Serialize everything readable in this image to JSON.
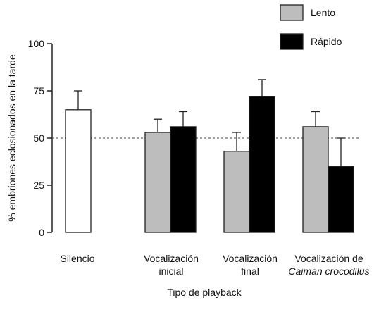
{
  "chart_data": {
    "type": "bar",
    "xlabel": "Tipo de playback",
    "ylabel": "% embriones eclosionados en la tarde",
    "ylim": [
      0,
      100
    ],
    "yticks": [
      "0",
      "25",
      "50",
      "75",
      "100"
    ],
    "reference_line": 50,
    "legend": {
      "placement": "top-right",
      "entries": [
        {
          "label": "Lento",
          "color": "#bdbdbd"
        },
        {
          "label": "Rápido",
          "color": "#000000"
        }
      ]
    },
    "groups": [
      {
        "label_lines": [
          "Silencio"
        ],
        "label_italic_suffix": "",
        "bars": [
          {
            "series": "control",
            "value": 65,
            "error": 10,
            "color": "#ffffff"
          }
        ]
      },
      {
        "label_lines": [
          "Vocalización",
          "inicial"
        ],
        "label_italic_suffix": "",
        "bars": [
          {
            "series": "Lento",
            "value": 53,
            "error": 7,
            "color": "#bdbdbd"
          },
          {
            "series": "Rápido",
            "value": 56,
            "error": 8,
            "color": "#000000"
          }
        ]
      },
      {
        "label_lines": [
          "Vocalización",
          "final"
        ],
        "label_italic_suffix": "",
        "bars": [
          {
            "series": "Lento",
            "value": 43,
            "error": 10,
            "color": "#bdbdbd"
          },
          {
            "series": "Rápido",
            "value": 72,
            "error": 9,
            "color": "#000000"
          }
        ]
      },
      {
        "label_lines": [
          "Vocalización de"
        ],
        "label_italic_suffix": "Caiman crocodilus",
        "bars": [
          {
            "series": "Lento",
            "value": 56,
            "error": 8,
            "color": "#bdbdbd"
          },
          {
            "series": "Rápido",
            "value": 35,
            "error": 15,
            "color": "#000000"
          }
        ]
      }
    ]
  }
}
